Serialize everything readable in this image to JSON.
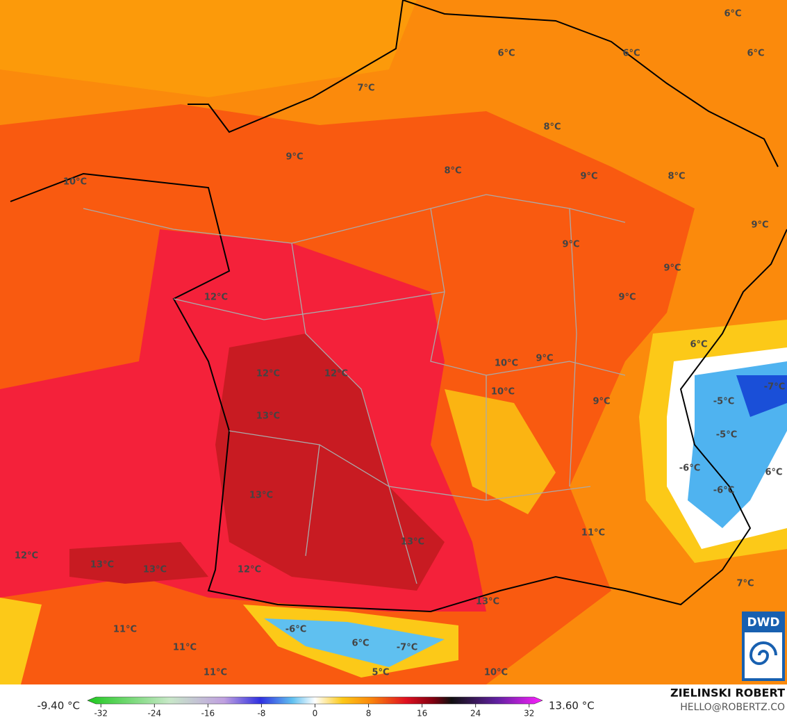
{
  "map": {
    "labels": [
      "6°C",
      "6°C",
      "6°C",
      "6°C",
      "7°C",
      "8°C",
      "9°C",
      "8°C",
      "9°C",
      "8°C",
      "10°C",
      "9°C",
      "9°C",
      "9°C",
      "12°C",
      "9°C",
      "6°C",
      "10°C",
      "9°C",
      "12°C",
      "12°C",
      "-7°C",
      "10°C",
      "9°C",
      "-5°C",
      "13°C",
      "-5°C",
      "-6°C",
      "6°C",
      "-6°C",
      "13°C",
      "11°C",
      "13°C",
      "12°C",
      "13°C",
      "13°C",
      "12°C",
      "7°C",
      "13°C",
      "-6°C",
      "11°C",
      "6°C",
      "-7°C",
      "11°C",
      "11°C",
      "5°C",
      "10°C"
    ],
    "logo": "DWD"
  },
  "colorbar": {
    "lim": [
      -34,
      34
    ],
    "ticks": [
      -32,
      -24,
      -16,
      -8,
      0,
      8,
      16,
      24,
      32
    ],
    "min_label": "-9.40 °C",
    "max_label": "13.60 °C"
  },
  "credits": {
    "name": "ZIELINSKI ROBERT",
    "contact": "HELLO@ROBERTZ.CO"
  }
}
